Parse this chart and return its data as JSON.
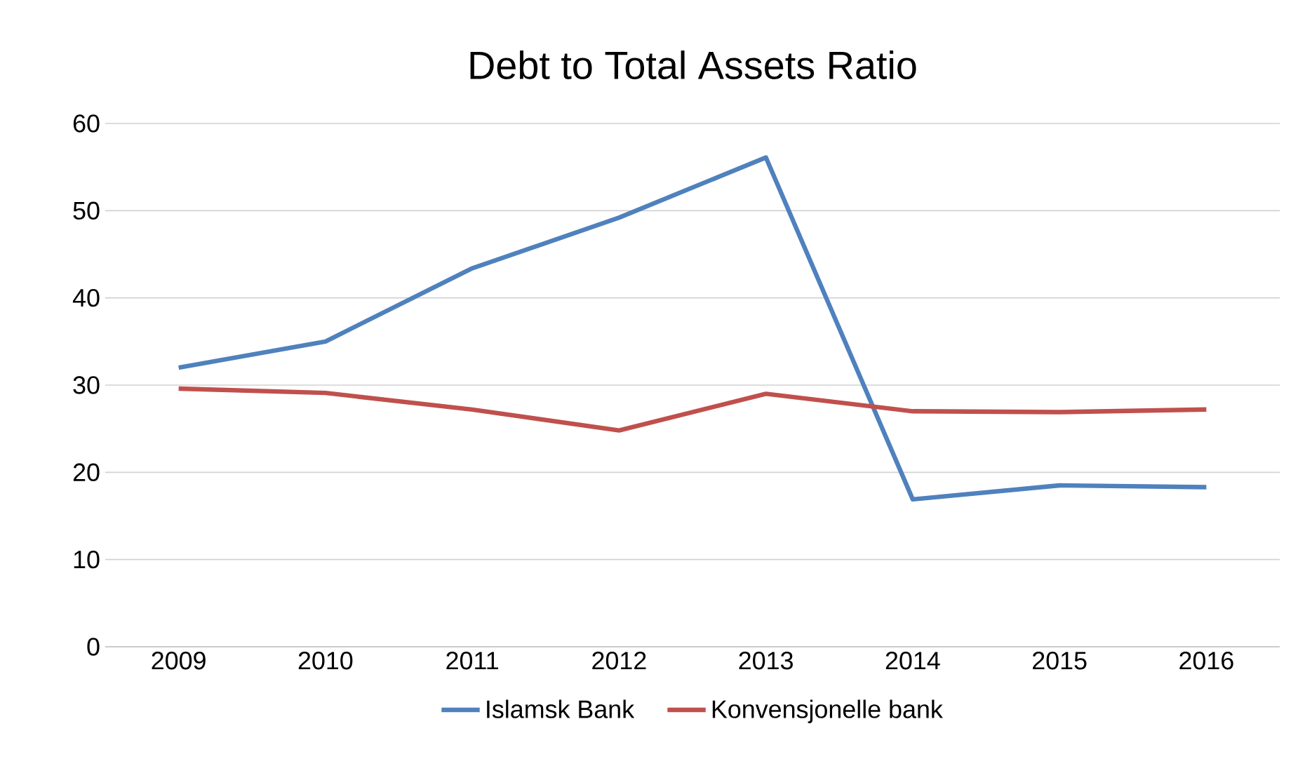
{
  "chart_data": {
    "type": "line",
    "title": "Debt to Total Assets Ratio",
    "categories": [
      "2009",
      "2010",
      "2011",
      "2012",
      "2013",
      "2014",
      "2015",
      "2016"
    ],
    "series": [
      {
        "name": "Islamsk Bank",
        "color": "#4f81bd",
        "values": [
          32,
          35,
          43.4,
          49.2,
          56.1,
          16.9,
          18.5,
          18.3
        ]
      },
      {
        "name": "Konvensjonelle bank",
        "color": "#c0504d",
        "values": [
          29.6,
          29.1,
          27.2,
          24.8,
          29.0,
          27.0,
          26.9,
          27.2
        ]
      }
    ],
    "ylim": [
      0,
      60
    ],
    "yticks": [
      0,
      10,
      20,
      30,
      40,
      50,
      60
    ],
    "grid": "y",
    "legend": "bottom",
    "marker": "none",
    "line_style": "solid"
  }
}
